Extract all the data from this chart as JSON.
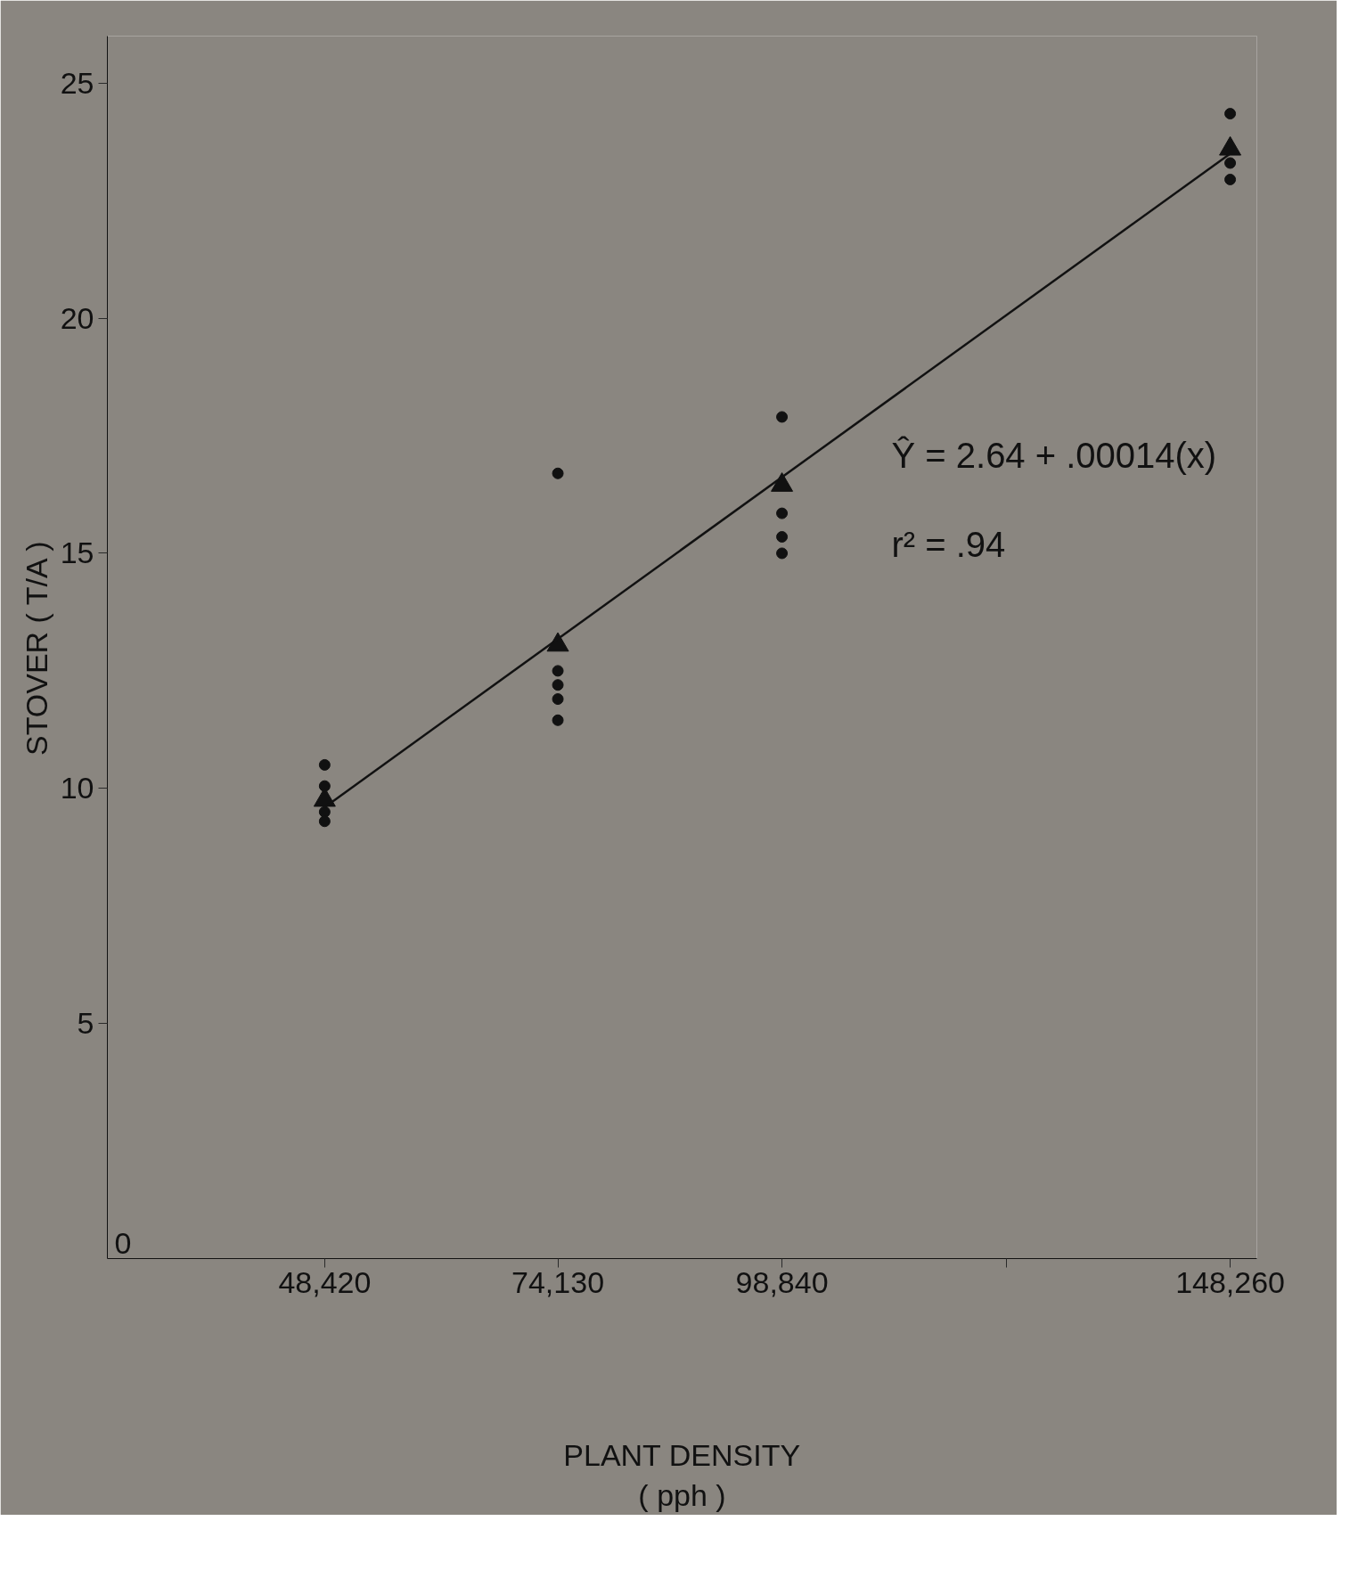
{
  "chart_data": {
    "type": "scatter",
    "xlabel": "PLANT DENSITY\n( pph )",
    "ylabel": "STOVER ( T/A )",
    "xlim": [
      24460,
      151200
    ],
    "ylim": [
      0,
      26
    ],
    "xticks": [
      {
        "value": 48420,
        "label": "48,420"
      },
      {
        "value": 74130,
        "label": "74,130"
      },
      {
        "value": 98840,
        "label": "98,840"
      },
      {
        "value": 123550,
        "label": null
      },
      {
        "value": 148260,
        "label": "148,260"
      }
    ],
    "yticks": [
      5,
      10,
      15,
      20,
      25
    ],
    "grid": false,
    "series": [
      {
        "marker": "circle",
        "color": "#111111",
        "x": [
          48420,
          48420,
          48420,
          48420,
          74130,
          74130,
          74130,
          74130,
          74130,
          98840,
          98840,
          98840,
          98840,
          148260,
          148260,
          148260
        ],
        "values": [
          10.5,
          10.05,
          9.5,
          9.3,
          16.7,
          12.5,
          12.2,
          11.9,
          11.45,
          17.9,
          15.85,
          15.35,
          15.0,
          24.35,
          23.3,
          22.95
        ]
      },
      {
        "marker": "triangle",
        "color": "#111111",
        "x": [
          48420,
          74130,
          98840,
          148260
        ],
        "values": [
          9.75,
          13.05,
          16.45,
          23.6
        ]
      },
      {
        "type": "line",
        "marker": "none",
        "line_style": "solid",
        "color": "#111111",
        "x": [
          48420,
          148260
        ],
        "values": [
          9.6,
          23.5
        ]
      }
    ],
    "annotations": [
      "Ŷ = 2.64 + .00014(x)",
      "r² = .94",
      "0"
    ]
  }
}
